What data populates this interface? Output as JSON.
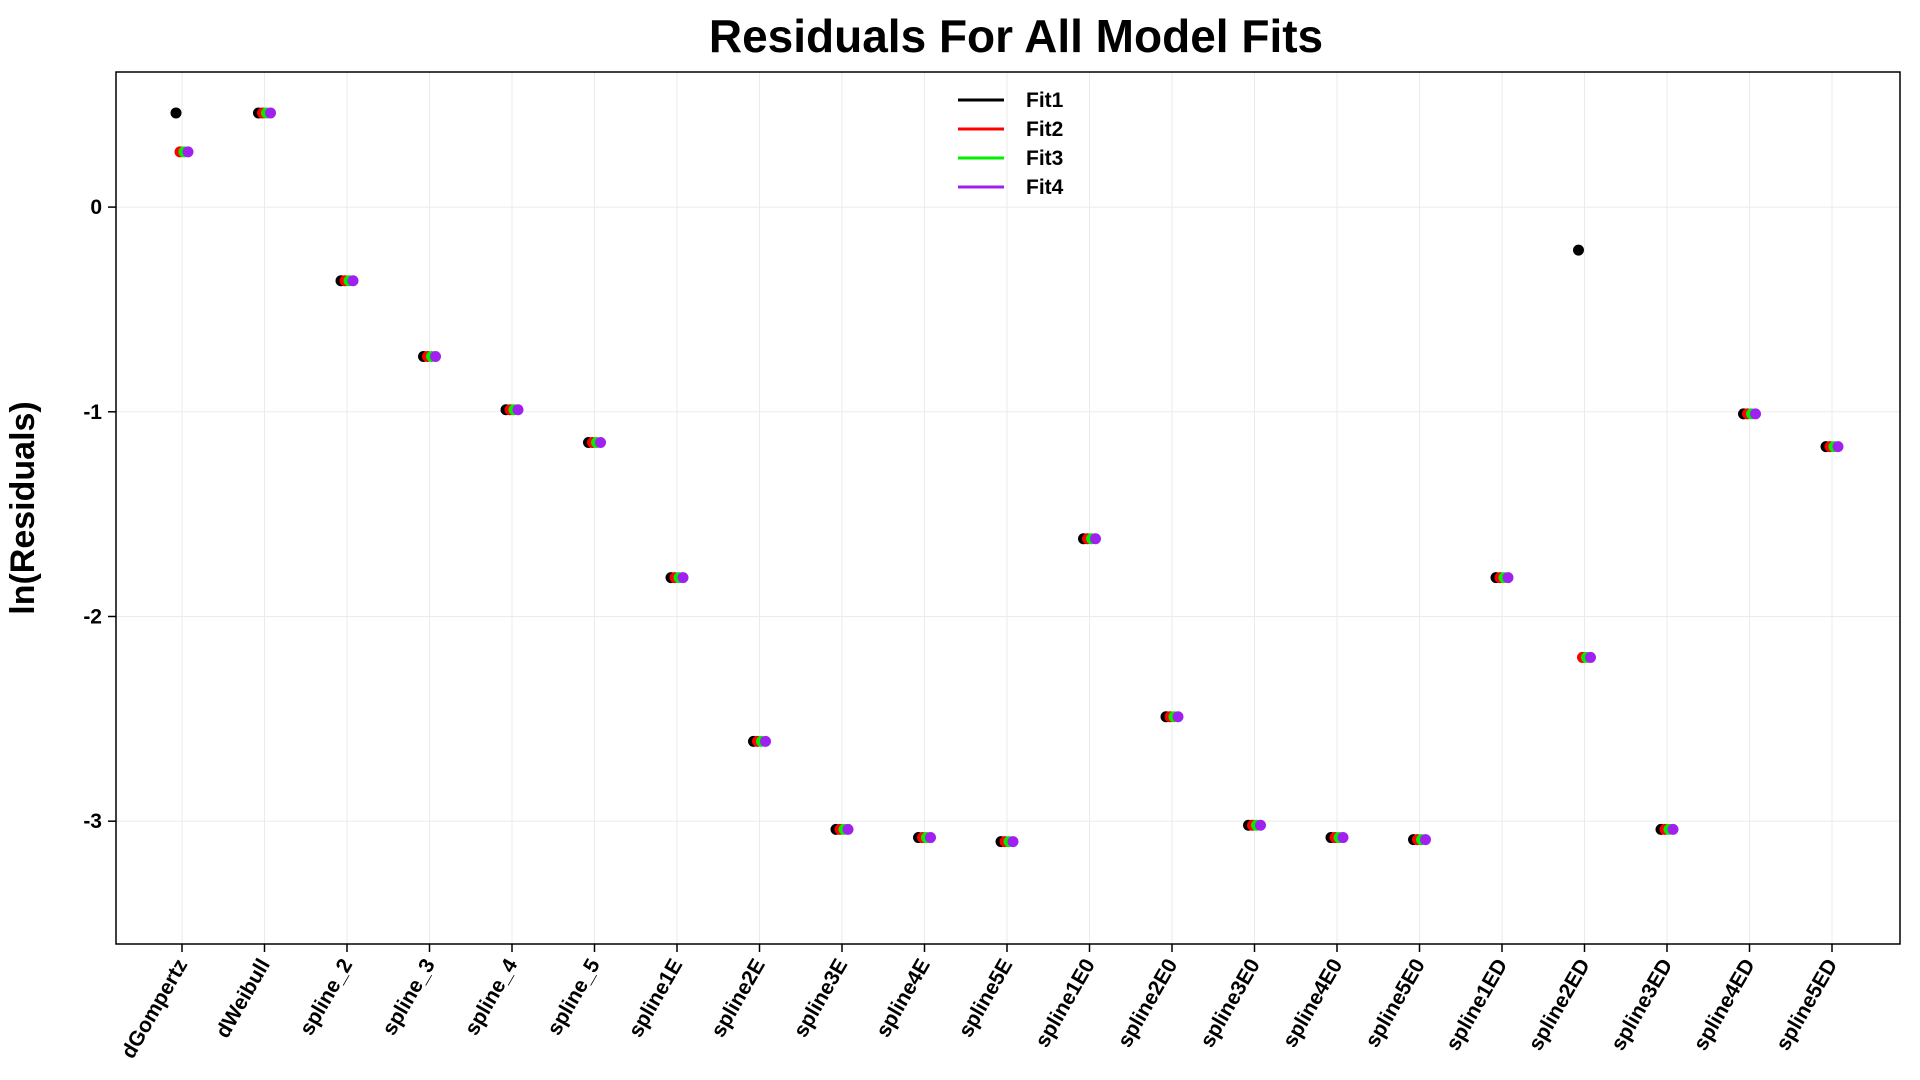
{
  "chart_data": {
    "type": "scatter",
    "title": "Residuals For All Model Fits",
    "xlabel": "",
    "ylabel": "ln(Residuals)",
    "ylim": [
      -3.6,
      0.66
    ],
    "yticks": [
      0,
      -1,
      -2,
      -3
    ],
    "ytick_labels": [
      "0",
      "-1",
      "-2",
      "-3"
    ],
    "grid": true,
    "legend_position": "top-center",
    "categories": [
      "dGompertz",
      "dWeibull",
      "spline_2",
      "spline_3",
      "spline_4",
      "spline_5",
      "spline1E",
      "spline2E",
      "spline3E",
      "spline4E",
      "spline5E",
      "spline1E0",
      "spline2E0",
      "spline3E0",
      "spline4E0",
      "spline5E0",
      "spline1ED",
      "spline2ED",
      "spline3ED",
      "spline4ED",
      "spline5ED"
    ],
    "series": [
      {
        "name": "Fit1",
        "color": "#000000",
        "values": [
          0.46,
          0.46,
          -0.36,
          -0.73,
          -0.99,
          -1.15,
          -1.81,
          -2.61,
          -3.04,
          -3.08,
          -3.1,
          -1.62,
          -2.49,
          -3.02,
          -3.08,
          -3.09,
          -1.81,
          -0.21,
          -3.04,
          -1.01,
          -1.17
        ]
      },
      {
        "name": "Fit2",
        "color": "#ff0000",
        "values": [
          0.27,
          0.46,
          -0.36,
          -0.73,
          -0.99,
          -1.15,
          -1.81,
          -2.61,
          -3.04,
          -3.08,
          -3.1,
          -1.62,
          -2.49,
          -3.02,
          -3.08,
          -3.09,
          -1.81,
          -2.2,
          -3.04,
          -1.01,
          -1.17
        ]
      },
      {
        "name": "Fit3",
        "color": "#00ee00",
        "values": [
          0.27,
          0.46,
          -0.36,
          -0.73,
          -0.99,
          -1.15,
          -1.81,
          -2.61,
          -3.04,
          -3.08,
          -3.1,
          -1.62,
          -2.49,
          -3.02,
          -3.08,
          -3.09,
          -1.81,
          -2.2,
          -3.04,
          -1.01,
          -1.17
        ]
      },
      {
        "name": "Fit4",
        "color": "#a020f0",
        "values": [
          0.27,
          0.46,
          -0.36,
          -0.73,
          -0.99,
          -1.15,
          -1.81,
          -2.61,
          -3.04,
          -3.08,
          -3.1,
          -1.62,
          -2.49,
          -3.02,
          -3.08,
          -3.09,
          -1.81,
          -2.2,
          -3.04,
          -1.01,
          -1.17
        ]
      }
    ]
  }
}
